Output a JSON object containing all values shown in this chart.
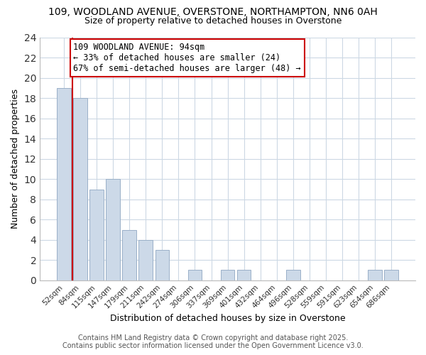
{
  "title": "109, WOODLAND AVENUE, OVERSTONE, NORTHAMPTON, NN6 0AH",
  "subtitle": "Size of property relative to detached houses in Overstone",
  "xlabel": "Distribution of detached houses by size in Overstone",
  "ylabel": "Number of detached properties",
  "bar_labels": [
    "52sqm",
    "84sqm",
    "115sqm",
    "147sqm",
    "179sqm",
    "211sqm",
    "242sqm",
    "274sqm",
    "306sqm",
    "337sqm",
    "369sqm",
    "401sqm",
    "432sqm",
    "464sqm",
    "496sqm",
    "528sqm",
    "559sqm",
    "591sqm",
    "623sqm",
    "654sqm",
    "686sqm"
  ],
  "bar_values": [
    19,
    18,
    9,
    10,
    5,
    4,
    3,
    0,
    1,
    0,
    1,
    1,
    0,
    0,
    1,
    0,
    0,
    0,
    0,
    1,
    1
  ],
  "bar_color": "#ccd9e8",
  "bar_edge_color": "#9ab0c8",
  "vline_color": "#cc0000",
  "vline_x_index": 0.5,
  "annotation_text": "109 WOODLAND AVENUE: 94sqm\n← 33% of detached houses are smaller (24)\n67% of semi-detached houses are larger (48) →",
  "annotation_box_edge": "#cc0000",
  "annotation_fontsize": 8.5,
  "ylim": [
    0,
    24
  ],
  "yticks": [
    0,
    2,
    4,
    6,
    8,
    10,
    12,
    14,
    16,
    18,
    20,
    22,
    24
  ],
  "footer_line1": "Contains HM Land Registry data © Crown copyright and database right 2025.",
  "footer_line2": "Contains public sector information licensed under the Open Government Licence v3.0.",
  "title_fontsize": 10,
  "subtitle_fontsize": 9,
  "ylabel_fontsize": 9,
  "xlabel_fontsize": 9,
  "footer_fontsize": 7,
  "bg_color": "#ffffff",
  "grid_color": "#ccd8e4"
}
